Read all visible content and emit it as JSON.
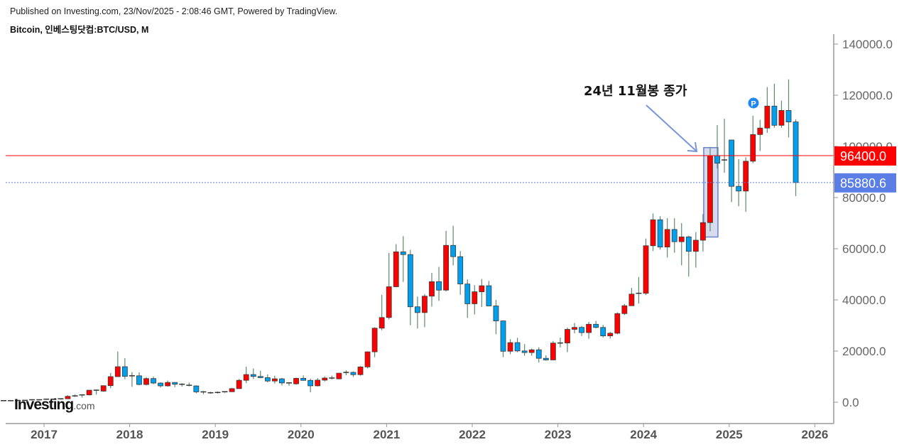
{
  "header": {
    "published": "Published on Investing.com, 23/Nov/2025 - 2:08:46 GMT, Powered by TradingView.",
    "symbol": "Bitcoin, 인베스팅닷컴:BTC/USD, M"
  },
  "logo": {
    "main": "Investing",
    "suffix": ".com"
  },
  "chart_data": {
    "type": "candlestick",
    "title": "Bitcoin, 인베스팅닷컴:BTC/USD, M",
    "interval": "monthly",
    "up_color": "#ff0000",
    "down_color": "#00a0f0",
    "ylim": [
      0,
      140000
    ],
    "y_ticks": [
      "0.0",
      "20000.0",
      "40000.0",
      "60000.0",
      "80000.0",
      "100000.0",
      "120000.0",
      "140000.0"
    ],
    "x_ticks": [
      "2017",
      "2018",
      "2019",
      "2020",
      "2021",
      "2022",
      "2023",
      "2024",
      "2025",
      "2026"
    ],
    "start": "2016-08",
    "ohlc": [
      [
        624,
        626,
        480,
        573
      ],
      [
        573,
        628,
        570,
        609
      ],
      [
        609,
        740,
        604,
        699
      ],
      [
        699,
        752,
        683,
        743
      ],
      [
        743,
        979,
        742,
        964
      ],
      [
        964,
        1150,
        750,
        968
      ],
      [
        968,
        1210,
        920,
        1190
      ],
      [
        1190,
        1290,
        890,
        1080
      ],
      [
        1080,
        1350,
        1060,
        1350
      ],
      [
        1350,
        2760,
        1350,
        2300
      ],
      [
        2300,
        3000,
        2070,
        2480
      ],
      [
        2480,
        2920,
        1830,
        2870
      ],
      [
        2870,
        4750,
        2700,
        4700
      ],
      [
        4700,
        5000,
        2970,
        4340
      ],
      [
        4340,
        6470,
        4110,
        6470
      ],
      [
        6470,
        11400,
        5500,
        10000
      ],
      [
        10000,
        19870,
        10000,
        13880
      ],
      [
        13880,
        17200,
        9000,
        10120
      ],
      [
        10120,
        11800,
        6000,
        10330
      ],
      [
        10330,
        11700,
        6600,
        6930
      ],
      [
        6930,
        9800,
        6560,
        9250
      ],
      [
        9250,
        10000,
        7030,
        7500
      ],
      [
        7500,
        7770,
        5780,
        6390
      ],
      [
        6390,
        8480,
        6080,
        7730
      ],
      [
        7730,
        7760,
        5880,
        7030
      ],
      [
        7030,
        7410,
        6110,
        6630
      ],
      [
        6630,
        7670,
        6200,
        6370
      ],
      [
        6370,
        6600,
        3500,
        4040
      ],
      [
        4040,
        4390,
        3130,
        3690
      ],
      [
        3690,
        4090,
        3360,
        3440
      ],
      [
        3440,
        4210,
        3390,
        3810
      ],
      [
        3810,
        4110,
        3700,
        4100
      ],
      [
        4100,
        5610,
        4040,
        5320
      ],
      [
        5320,
        9070,
        5270,
        8570
      ],
      [
        8570,
        13880,
        7460,
        10820
      ],
      [
        10820,
        13200,
        9080,
        10080
      ],
      [
        10080,
        12330,
        9390,
        9600
      ],
      [
        9600,
        10900,
        7750,
        8290
      ],
      [
        8290,
        10370,
        7300,
        9150
      ],
      [
        9150,
        9510,
        6530,
        7550
      ],
      [
        7550,
        7750,
        6440,
        7190
      ],
      [
        7190,
        9580,
        6870,
        9350
      ],
      [
        9350,
        10500,
        8460,
        8540
      ],
      [
        8540,
        9190,
        3870,
        6410
      ],
      [
        6410,
        9460,
        6160,
        8630
      ],
      [
        8630,
        10080,
        8130,
        9450
      ],
      [
        9450,
        10390,
        8900,
        9140
      ],
      [
        9140,
        11440,
        8940,
        11350
      ],
      [
        11350,
        12470,
        10540,
        11660
      ],
      [
        11660,
        12080,
        9880,
        10780
      ],
      [
        10780,
        14100,
        10400,
        13800
      ],
      [
        13800,
        19860,
        13210,
        19700
      ],
      [
        19700,
        29300,
        17600,
        28950
      ],
      [
        28950,
        41950,
        28130,
        33110
      ],
      [
        33110,
        58330,
        32380,
        45140
      ],
      [
        45140,
        61790,
        44960,
        58790
      ],
      [
        58790,
        64900,
        47040,
        57720
      ],
      [
        57720,
        59590,
        30070,
        37300
      ],
      [
        37300,
        41300,
        28800,
        35040
      ],
      [
        35040,
        42300,
        29300,
        41460
      ],
      [
        41460,
        50500,
        37400,
        47130
      ],
      [
        47130,
        52900,
        39600,
        43820
      ],
      [
        43820,
        67000,
        43300,
        61320
      ],
      [
        61320,
        69000,
        53500,
        56900
      ],
      [
        56900,
        59100,
        42000,
        46210
      ],
      [
        46210,
        47990,
        32950,
        38480
      ],
      [
        38480,
        45800,
        34320,
        43170
      ],
      [
        43170,
        48190,
        37200,
        45530
      ],
      [
        45530,
        47430,
        37700,
        37640
      ],
      [
        37640,
        40020,
        26580,
        31790
      ],
      [
        31790,
        31960,
        17620,
        19930
      ],
      [
        19930,
        24650,
        18780,
        23300
      ],
      [
        23300,
        25200,
        19550,
        20050
      ],
      [
        20050,
        22730,
        18180,
        19420
      ],
      [
        19420,
        20990,
        18190,
        20490
      ],
      [
        20490,
        21480,
        15480,
        17170
      ],
      [
        17170,
        18370,
        16260,
        16540
      ],
      [
        16540,
        23950,
        16500,
        23130
      ],
      [
        23130,
        25250,
        21410,
        23150
      ],
      [
        23150,
        29170,
        19570,
        28480
      ],
      [
        28480,
        31000,
        26950,
        29250
      ],
      [
        29250,
        29820,
        25880,
        27220
      ],
      [
        27220,
        31390,
        24800,
        30470
      ],
      [
        30470,
        31810,
        28900,
        29230
      ],
      [
        29230,
        30200,
        25330,
        25930
      ],
      [
        25930,
        27470,
        24920,
        26970
      ],
      [
        26970,
        35150,
        26550,
        34650
      ],
      [
        34650,
        38430,
        34100,
        37720
      ],
      [
        37720,
        44700,
        37630,
        42270
      ],
      [
        42270,
        48970,
        38550,
        42580
      ],
      [
        42580,
        63970,
        41880,
        61170
      ],
      [
        61170,
        73790,
        59100,
        71330
      ],
      [
        71330,
        72700,
        59640,
        60670
      ],
      [
        60670,
        71950,
        56550,
        67530
      ],
      [
        67530,
        71910,
        58460,
        62750
      ],
      [
        62750,
        70000,
        53500,
        64630
      ],
      [
        64630,
        65100,
        49100,
        58970
      ],
      [
        58970,
        66500,
        52600,
        63330
      ],
      [
        63330,
        73600,
        58900,
        70220
      ],
      [
        70220,
        99800,
        66800,
        96400
      ],
      [
        96400,
        108300,
        91400,
        93430
      ],
      [
        94700,
        110800,
        89700,
        94700
      ],
      [
        102500,
        102500,
        78200,
        84400
      ],
      [
        84400,
        95000,
        76600,
        82550
      ],
      [
        82550,
        95760,
        74400,
        94210
      ],
      [
        94210,
        111980,
        93400,
        104640
      ],
      [
        104640,
        110400,
        98200,
        107170
      ],
      [
        107170,
        123200,
        105300,
        115760
      ],
      [
        115760,
        124500,
        107300,
        108250
      ],
      [
        108250,
        117900,
        107300,
        114060
      ],
      [
        114060,
        126200,
        103500,
        109560
      ],
      [
        109560,
        110600,
        80600,
        85880
      ]
    ],
    "price_lines": [
      {
        "value": 96400.0,
        "label": "96400.0",
        "color": "#ff0000",
        "style": "solid"
      },
      {
        "value": 85880.6,
        "label": "85880.6",
        "color": "#5a7de6",
        "style": "dotted"
      }
    ],
    "annotation": {
      "text": "24년 11월봉 종가",
      "target": "2024-11"
    },
    "marker": {
      "text": "P",
      "at": "2025-06"
    }
  }
}
